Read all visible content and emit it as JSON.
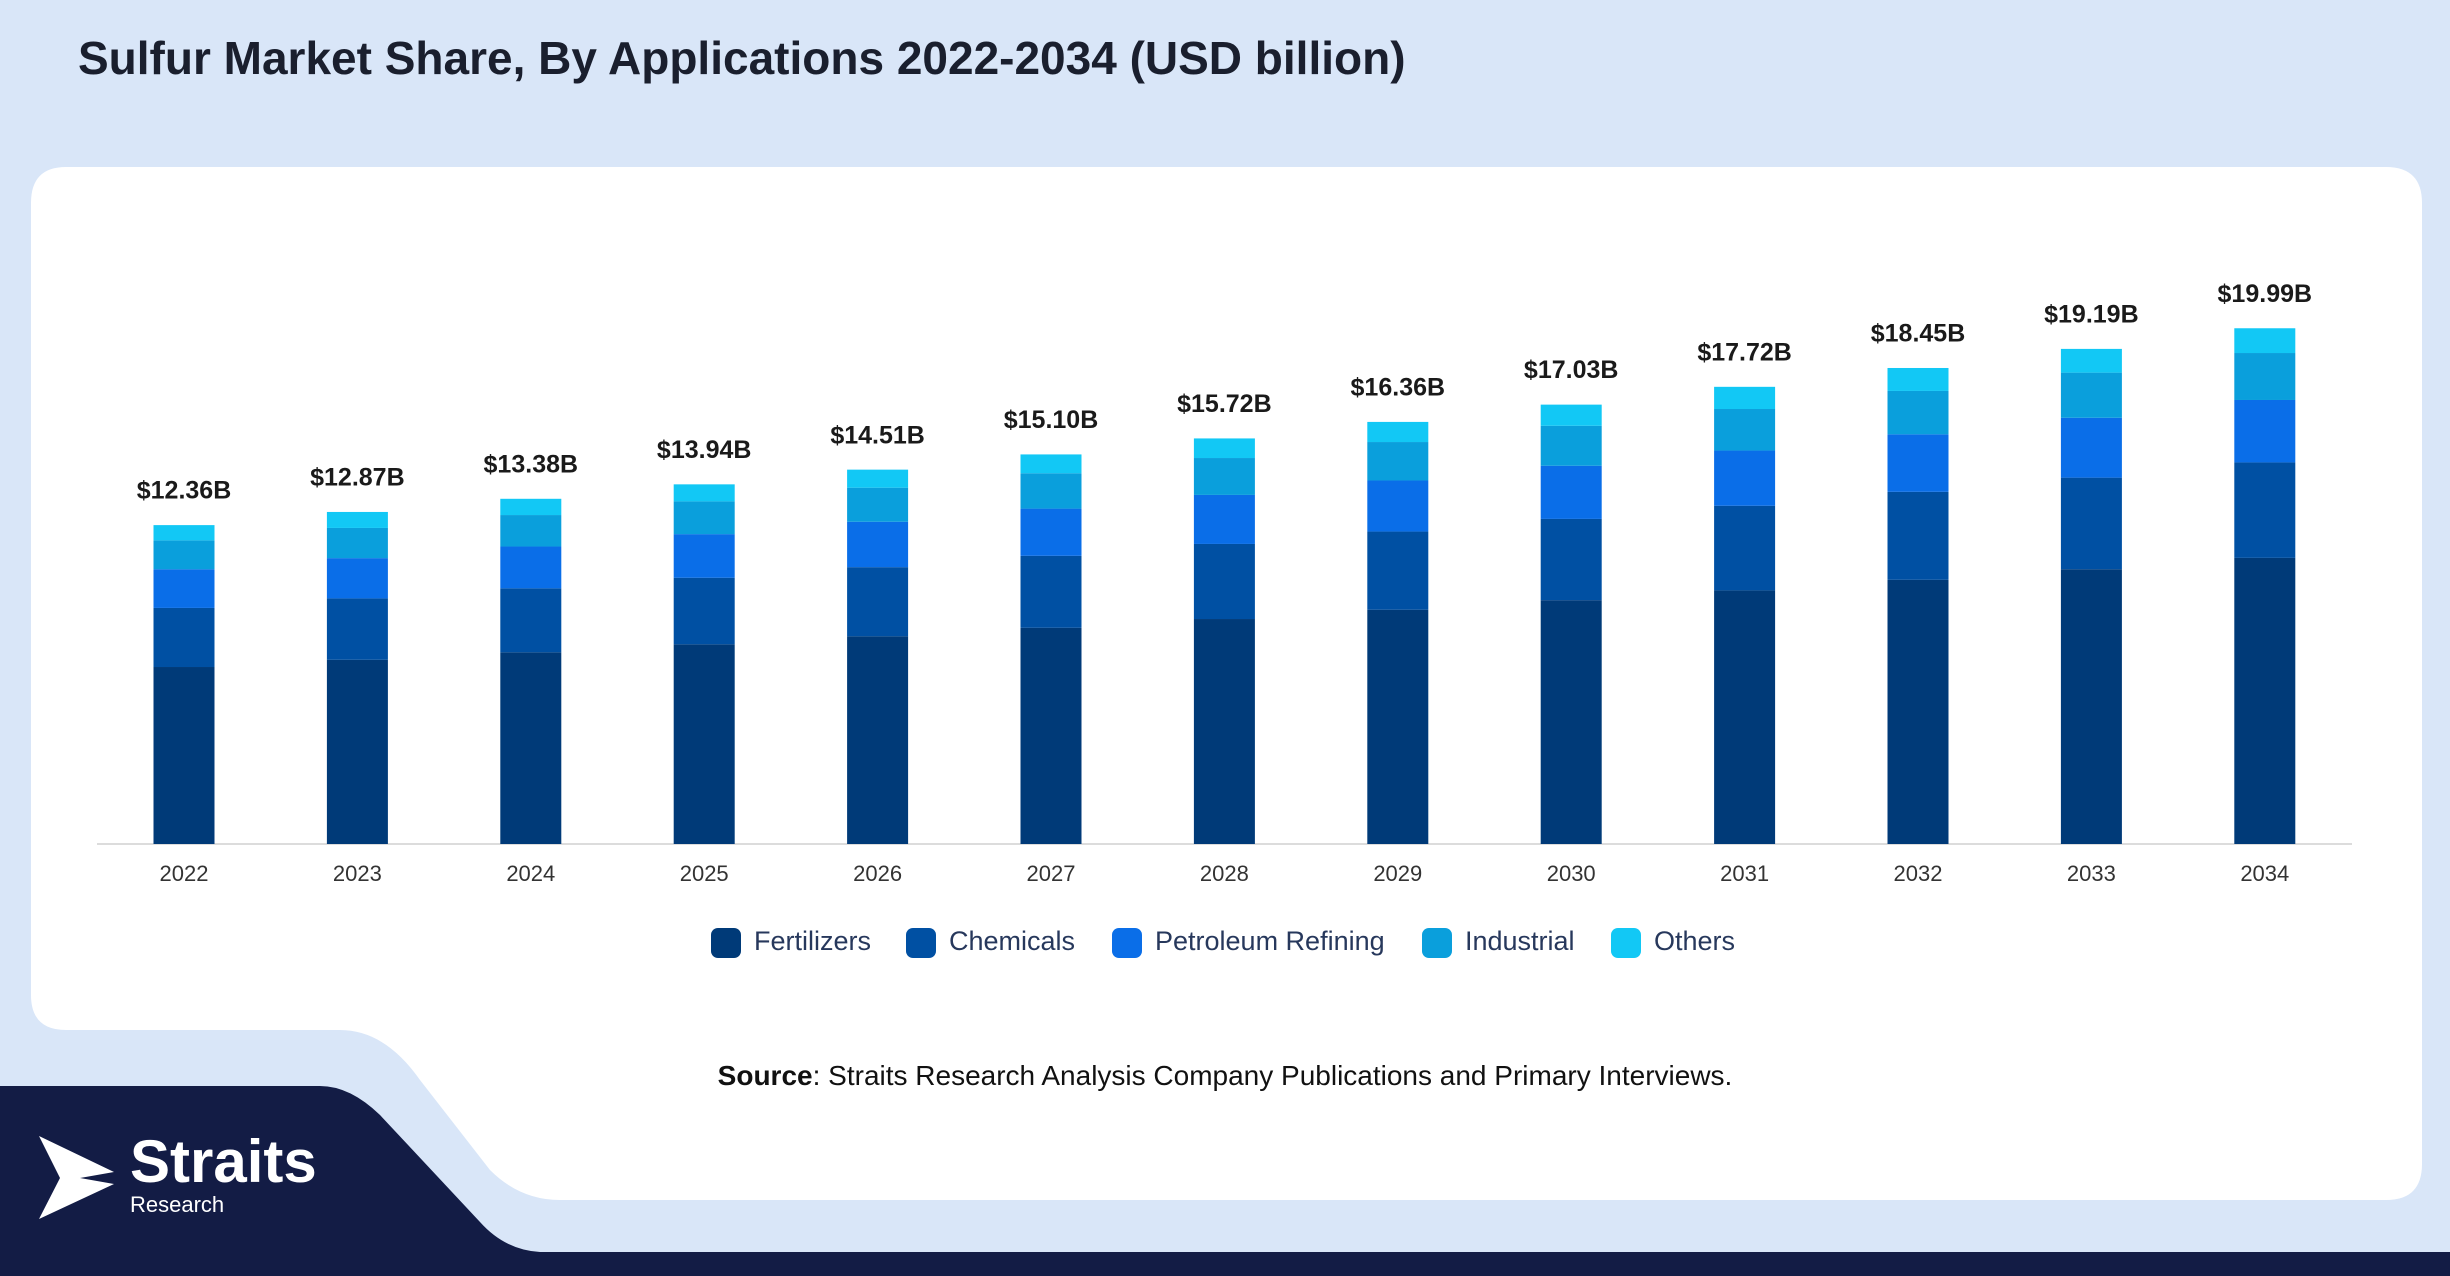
{
  "chart_data": {
    "type": "stacked_bar",
    "title": "Sulfur Market Share, By Applications 2022-2034 (USD billion)",
    "categories": [
      "2022",
      "2023",
      "2024",
      "2025",
      "2026",
      "2027",
      "2028",
      "2029",
      "2030",
      "2031",
      "2032",
      "2033",
      "2034"
    ],
    "series": [
      {
        "name": "Fertilizers",
        "color": "#003a78",
        "values": [
          6.86,
          7.14,
          7.43,
          7.74,
          8.05,
          8.38,
          8.72,
          9.08,
          9.45,
          9.83,
          10.24,
          10.65,
          11.09
        ]
      },
      {
        "name": "Chemicals",
        "color": "#0050a3",
        "values": [
          2.29,
          2.38,
          2.48,
          2.58,
          2.68,
          2.79,
          2.91,
          3.03,
          3.15,
          3.28,
          3.41,
          3.55,
          3.7
        ]
      },
      {
        "name": "Petroleum Refining",
        "color": "#0a6ee8",
        "values": [
          1.5,
          1.56,
          1.62,
          1.69,
          1.76,
          1.83,
          1.9,
          1.98,
          2.06,
          2.14,
          2.23,
          2.32,
          2.42
        ]
      },
      {
        "name": "Industrial",
        "color": "#0a9fdc",
        "values": [
          1.12,
          1.17,
          1.22,
          1.27,
          1.32,
          1.37,
          1.43,
          1.49,
          1.55,
          1.61,
          1.68,
          1.75,
          1.82
        ]
      },
      {
        "name": "Others",
        "color": "#12c8f5",
        "values": [
          0.59,
          0.62,
          0.63,
          0.66,
          0.7,
          0.73,
          0.76,
          0.78,
          0.82,
          0.86,
          0.89,
          0.92,
          0.96
        ]
      }
    ],
    "totals": {
      "values": [
        12.36,
        12.87,
        13.38,
        13.94,
        14.51,
        15.1,
        15.72,
        16.36,
        17.03,
        17.72,
        18.45,
        19.19,
        19.99
      ],
      "value_labels": [
        "$12.36B",
        "$12.87B",
        "$13.38B",
        "$13.94B",
        "$14.51B",
        "$15.10B",
        "$15.72B",
        "$16.36B",
        "$17.03B",
        "$17.72B",
        "$18.45B",
        "$19.19B",
        "$19.99B"
      ]
    },
    "legend": "bottom"
  },
  "source": {
    "label": "Source",
    "text": ": Straits Research Analysis Company Publications and Primary Interviews."
  },
  "logo": {
    "name": "Straits",
    "tagline": "Research"
  }
}
